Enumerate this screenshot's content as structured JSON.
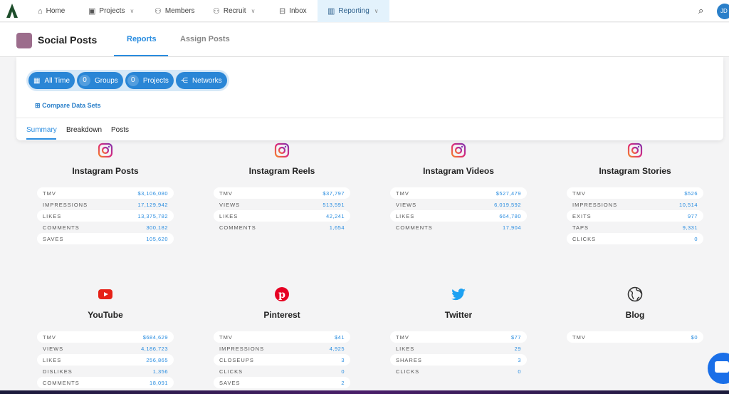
{
  "nav": {
    "items": [
      {
        "label": "Home",
        "icon": "home-icon"
      },
      {
        "label": "Projects",
        "icon": "board-icon",
        "dropdown": true
      },
      {
        "label": "Members",
        "icon": "members-icon"
      },
      {
        "label": "Recruit",
        "icon": "recruit-icon",
        "dropdown": true
      },
      {
        "label": "Inbox",
        "icon": "inbox-icon"
      },
      {
        "label": "Reporting",
        "icon": "chart-icon",
        "dropdown": true,
        "active": true
      }
    ],
    "avatar": "JD"
  },
  "header": {
    "title": "Social Posts",
    "tabs": [
      {
        "label": "Reports",
        "active": true
      },
      {
        "label": "Assign Posts"
      }
    ]
  },
  "filters": {
    "time": "All Time",
    "groups_count": "0",
    "groups": "Groups",
    "projects_count": "0",
    "projects": "Projects",
    "networks": "Networks",
    "compare": "Compare Data Sets"
  },
  "subtabs": [
    {
      "label": "Summary",
      "active": true
    },
    {
      "label": "Breakdown"
    },
    {
      "label": "Posts"
    }
  ],
  "cards": [
    {
      "title": "Instagram Posts",
      "icon": "instagram-icon",
      "rows": [
        [
          "TMV",
          "$3,106,080"
        ],
        [
          "IMPRESSIONS",
          "17,129,942"
        ],
        [
          "LIKES",
          "13,375,782"
        ],
        [
          "COMMENTS",
          "300,182"
        ],
        [
          "SAVES",
          "105,620"
        ]
      ]
    },
    {
      "title": "Instagram Reels",
      "icon": "instagram-icon",
      "rows": [
        [
          "TMV",
          "$37,797"
        ],
        [
          "VIEWS",
          "513,591"
        ],
        [
          "LIKES",
          "42,241"
        ],
        [
          "COMMENTS",
          "1,654"
        ]
      ]
    },
    {
      "title": "Instagram Videos",
      "icon": "instagram-icon",
      "rows": [
        [
          "TMV",
          "$527,479"
        ],
        [
          "VIEWS",
          "6,019,592"
        ],
        [
          "LIKES",
          "664,780"
        ],
        [
          "COMMENTS",
          "17,904"
        ]
      ]
    },
    {
      "title": "Instagram Stories",
      "icon": "instagram-icon",
      "rows": [
        [
          "TMV",
          "$526"
        ],
        [
          "IMPRESSIONS",
          "10,514"
        ],
        [
          "EXITS",
          "977"
        ],
        [
          "TAPS",
          "9,331"
        ],
        [
          "CLICKS",
          "0"
        ]
      ]
    },
    {
      "title": "YouTube",
      "icon": "youtube-icon",
      "rows": [
        [
          "TMV",
          "$684,629"
        ],
        [
          "VIEWS",
          "4,186,723"
        ],
        [
          "LIKES",
          "256,865"
        ],
        [
          "DISLIKES",
          "1,356"
        ],
        [
          "COMMENTS",
          "18,091"
        ]
      ]
    },
    {
      "title": "Pinterest",
      "icon": "pinterest-icon",
      "rows": [
        [
          "TMV",
          "$41"
        ],
        [
          "IMPRESSIONS",
          "4,925"
        ],
        [
          "CLOSEUPS",
          "3"
        ],
        [
          "CLICKS",
          "0"
        ],
        [
          "SAVES",
          "2"
        ]
      ]
    },
    {
      "title": "Twitter",
      "icon": "twitter-icon",
      "rows": [
        [
          "TMV",
          "$77"
        ],
        [
          "LIKES",
          "29"
        ],
        [
          "SHARES",
          "3"
        ],
        [
          "CLICKS",
          "0"
        ]
      ]
    },
    {
      "title": "Blog",
      "icon": "globe-icon",
      "rows": [
        [
          "TMV",
          "$0"
        ]
      ]
    }
  ],
  "colors": {
    "accent": "#2a8de0",
    "instagram": "#c13584",
    "youtube": "#e62117",
    "pinterest": "#e60023",
    "twitter": "#1da1f2"
  }
}
